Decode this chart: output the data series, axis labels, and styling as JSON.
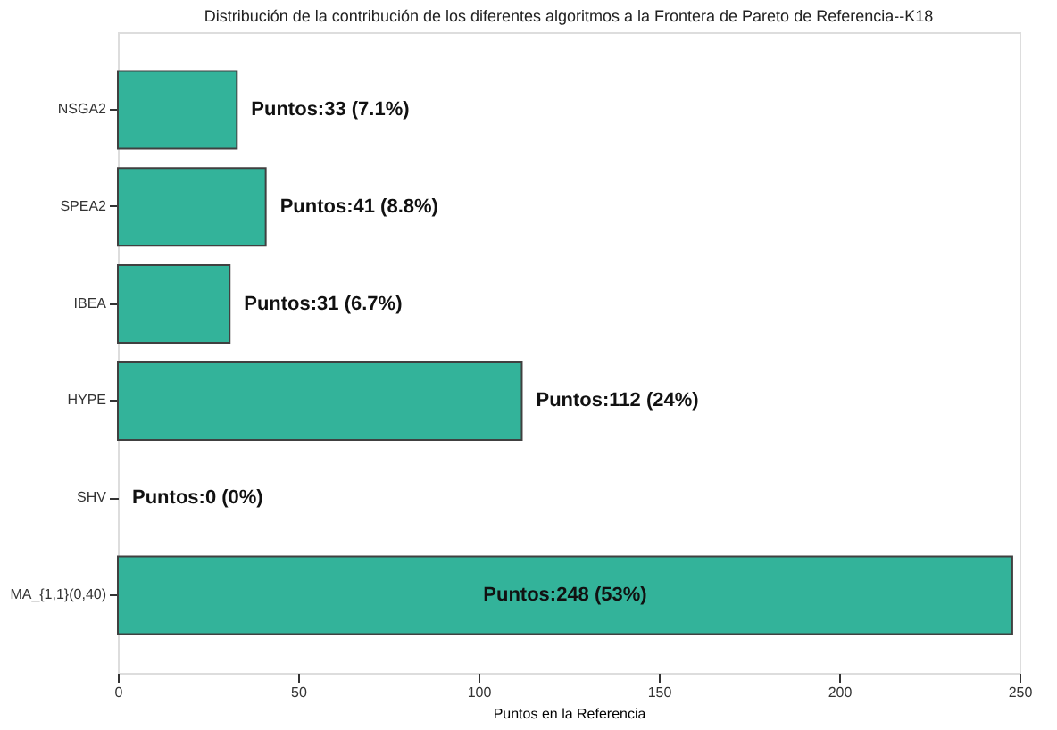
{
  "chart_data": {
    "type": "bar",
    "orientation": "horizontal",
    "title": "Distribución de la contribución de los diferentes algoritmos a la Frontera de Pareto de Referencia--K18",
    "xlabel": "Puntos en la Referencia",
    "categories": [
      "NSGA2",
      "SPEA2",
      "IBEA",
      "HYPE",
      "SHV",
      "MA_{1,1}(0,40)"
    ],
    "values": [
      33,
      41,
      31,
      112,
      0,
      248
    ],
    "value_labels": [
      "Puntos:33 (7.1%)",
      "Puntos:41 (8.8%)",
      "Puntos:31 (6.7%)",
      "Puntos:112 (24%)",
      "Puntos:0 (0%)",
      "Puntos:248 (53%)"
    ],
    "color": "#33b39a",
    "xlim": [
      0,
      250
    ],
    "xticks": [
      0,
      50,
      100,
      150,
      200,
      250
    ],
    "grid": false
  }
}
